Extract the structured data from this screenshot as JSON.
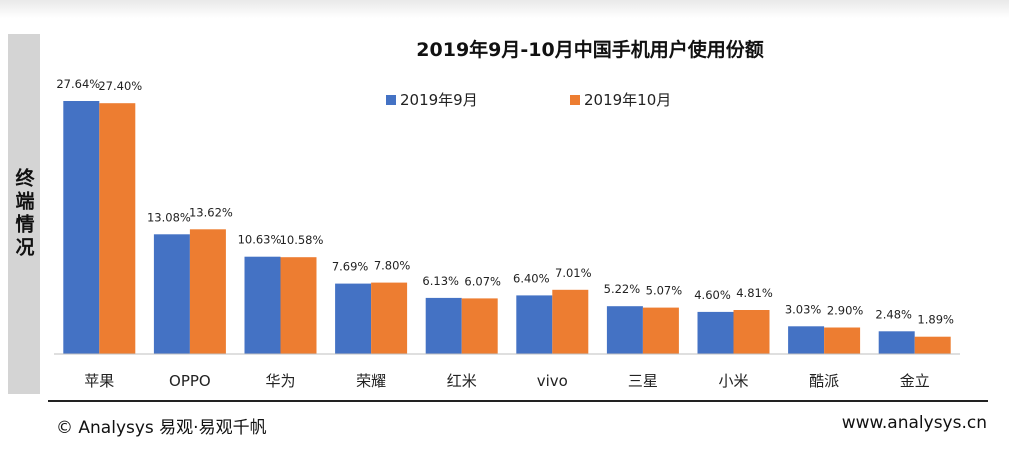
{
  "side_label": "终端情况",
  "footer": {
    "left": "© Analysys 易观·易观千帆",
    "right": "www.analysys.cn"
  },
  "colors": {
    "series_1": "#4472c4",
    "series_2": "#ed7d31",
    "axis": "#bfbfbf",
    "side_panel": "#d4d4d4"
  },
  "chart_data": {
    "type": "bar",
    "title": "2019年9月-10月中国手机用户使用份额",
    "xlabel": "",
    "ylabel": "",
    "ylim": [
      0,
      30
    ],
    "grid": false,
    "legend_position": "top",
    "categories": [
      "苹果",
      "OPPO",
      "华为",
      "荣耀",
      "红米",
      "vivo",
      "三星",
      "小米",
      "酷派",
      "金立"
    ],
    "series": [
      {
        "name": "2019年9月",
        "values": [
          27.64,
          13.08,
          10.63,
          7.69,
          6.13,
          6.4,
          5.22,
          4.6,
          3.03,
          2.48
        ],
        "labels": [
          "27.64%",
          "13.08%",
          "10.63%",
          "7.69%",
          "6.13%",
          "6.40%",
          "5.22%",
          "4.60%",
          "3.03%",
          "2.48%"
        ]
      },
      {
        "name": "2019年10月",
        "values": [
          27.4,
          13.62,
          10.58,
          7.8,
          6.07,
          7.01,
          5.07,
          4.81,
          2.9,
          1.89
        ],
        "labels": [
          "27.40%",
          "13.62%",
          "10.58%",
          "7.80%",
          "6.07%",
          "7.01%",
          "5.07%",
          "4.81%",
          "2.90%",
          "1.89%"
        ]
      }
    ]
  }
}
